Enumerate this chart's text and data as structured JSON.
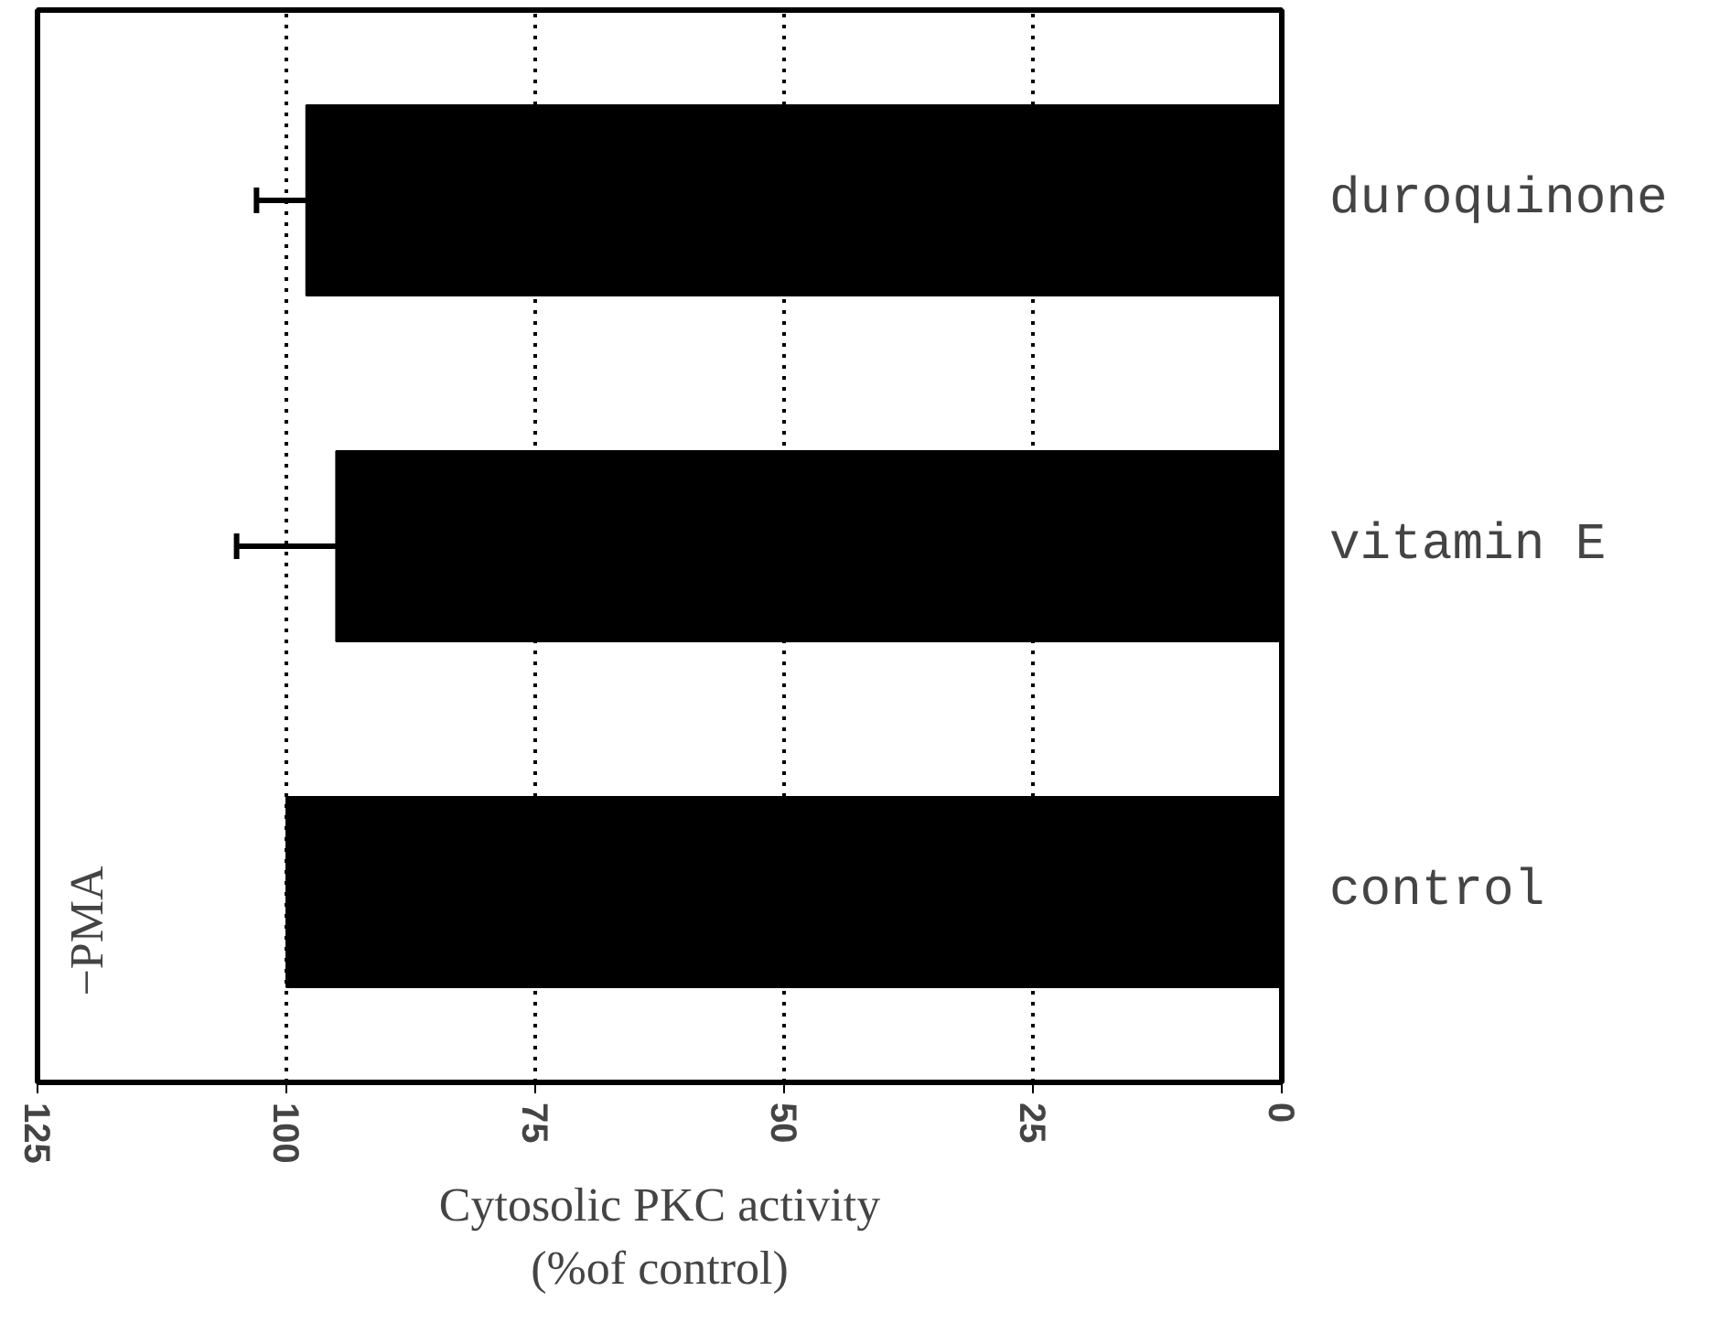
{
  "chart_data": {
    "type": "bar",
    "orientation": "horizontal",
    "categories": [
      "duroquinone",
      "vitamin E",
      "control"
    ],
    "values": [
      98,
      95,
      100
    ],
    "errors": [
      [
        98,
        103
      ],
      [
        95,
        105
      ],
      null
    ],
    "color": "#000000",
    "xlim": [
      125,
      0
    ],
    "xticks": [
      125,
      100,
      75,
      50,
      25,
      0
    ],
    "xlabel": "Cytosolic PKC activity\n(%of control)",
    "annotations": [
      "−PMA"
    ],
    "grid": "x"
  }
}
